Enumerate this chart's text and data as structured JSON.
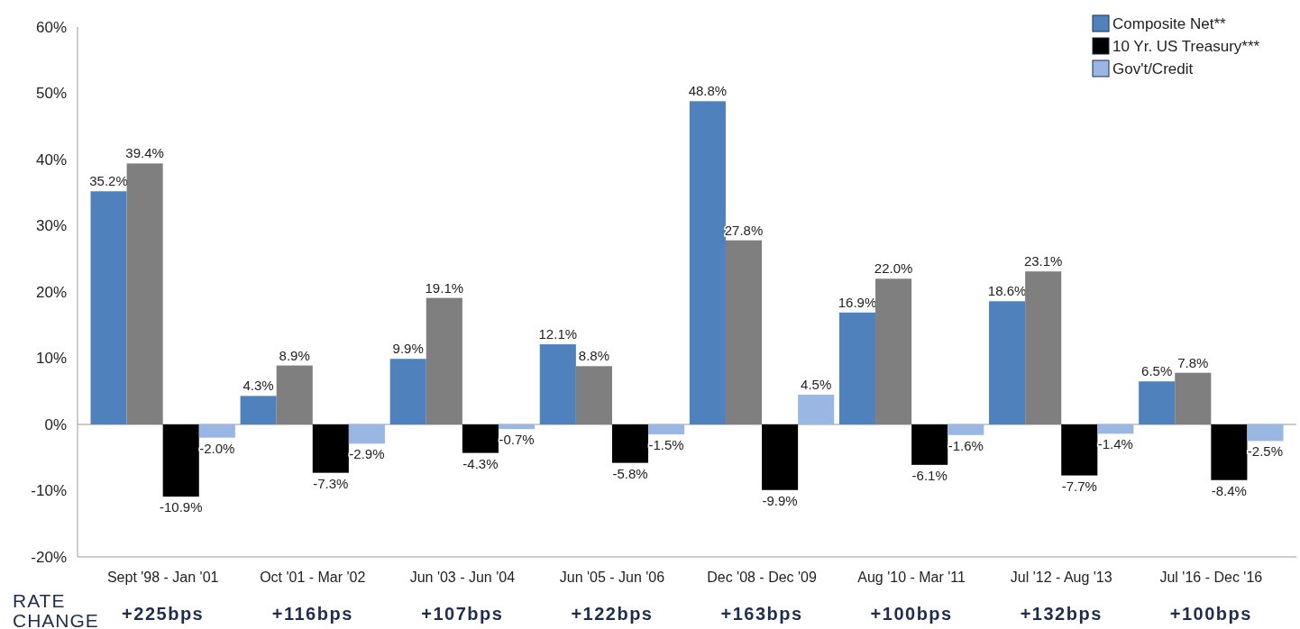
{
  "chart_data": {
    "type": "bar",
    "categories": [
      "Sept '98 - Jan '01",
      "Oct '01 - Mar '02",
      "Jun '03 - Jun '04",
      "Jun '05 - Jun '06",
      "Dec '08 - Dec '09",
      "Aug '10 - Mar '11",
      "Jul '12 - Aug '13",
      "Jul '16 - Dec '16"
    ],
    "series": [
      {
        "name": "Composite Net**",
        "color": "#4f81bd",
        "values": [
          35.2,
          4.3,
          9.9,
          12.1,
          48.8,
          16.9,
          18.6,
          6.5
        ],
        "value_labels": [
          "35.2%",
          "4.3%",
          "9.9%",
          "12.1%",
          "48.8%",
          "16.9%",
          "18.6%",
          "6.5%"
        ]
      },
      {
        "color": "#7f7f7f",
        "values": [
          39.4,
          8.9,
          19.1,
          8.8,
          27.8,
          22.0,
          23.1,
          7.8
        ],
        "value_labels": [
          "39.4%",
          "8.9%",
          "19.1%",
          "8.8%",
          "27.8%",
          "22.0%",
          "23.1%",
          "7.8%"
        ]
      },
      {
        "name": "10 Yr. US Treasury***",
        "color": "#000000",
        "values": [
          -10.9,
          -7.3,
          -4.3,
          -5.8,
          -9.9,
          -6.1,
          -7.7,
          -8.4
        ],
        "value_labels": [
          "-10.9%",
          "-7.3%",
          "-4.3%",
          "-5.8%",
          "-9.9%",
          "-6.1%",
          "-7.7%",
          "-8.4%"
        ]
      },
      {
        "name": "Gov't/Credit",
        "color": "#9ab7e3",
        "values": [
          -2.0,
          -2.9,
          -0.7,
          -1.5,
          4.5,
          -1.6,
          -1.4,
          -2.5
        ],
        "value_labels": [
          "-2.0%",
          "-2.9%",
          "-0.7%",
          "-1.5%",
          "4.5%",
          "-1.6%",
          "-1.4%",
          "-2.5%"
        ]
      }
    ],
    "ylim": [
      -20,
      60
    ],
    "yticks": [
      {
        "value": -20,
        "label": "-20%"
      },
      {
        "value": -10,
        "label": "-10%"
      },
      {
        "value": 0,
        "label": "0%"
      },
      {
        "value": 10,
        "label": "10%"
      },
      {
        "value": 20,
        "label": "20%"
      },
      {
        "value": 30,
        "label": "30%"
      },
      {
        "value": 40,
        "label": "40%"
      },
      {
        "value": 50,
        "label": "50%"
      },
      {
        "value": 60,
        "label": "60%"
      }
    ],
    "legend": "top right",
    "annotations": [
      "RATE CHANGE",
      "+225bps",
      "+116bps",
      "+107bps",
      "+122bps",
      "+163bps",
      "+100bps",
      "+132bps",
      "+100bps"
    ]
  }
}
